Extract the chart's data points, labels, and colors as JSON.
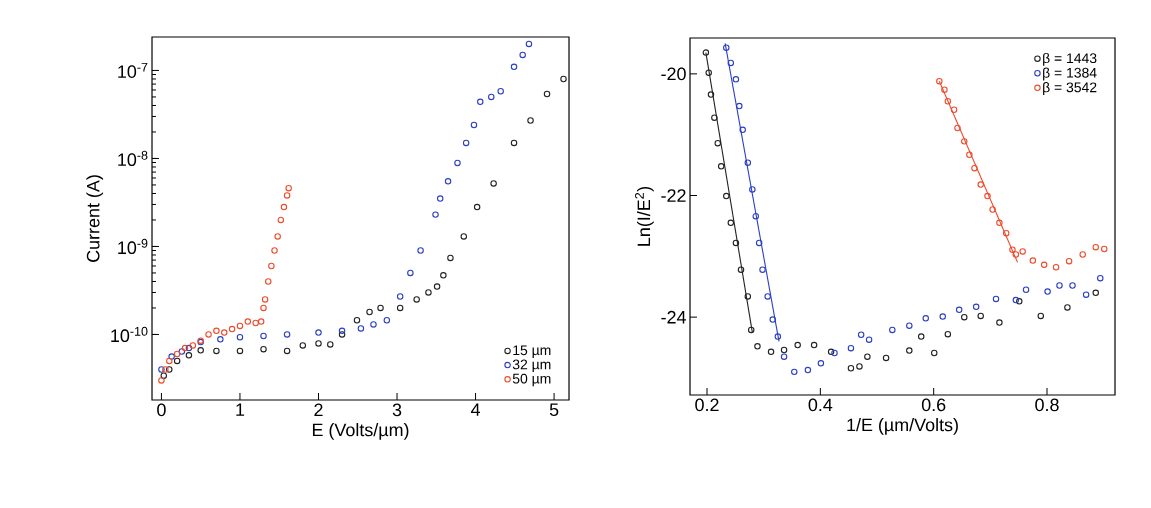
{
  "chart_data": [
    {
      "type": "scatter",
      "xlabel": "E (Volts/µm)",
      "ylabel": "Current (A)",
      "log": "y",
      "legend": "bottom right",
      "marker": "circle",
      "xlim": [
        -0.12,
        5.19
      ],
      "ylim": [
        1.8e-11,
        2.4e-07
      ],
      "xticks": [
        0,
        1,
        2,
        3,
        4,
        5
      ],
      "yticks": [
        {
          "value": 1e-10,
          "label": "10$^{-10}$"
        },
        {
          "value": 1e-09,
          "label": "10$^{-9}$"
        },
        {
          "value": 1e-08,
          "label": "10$^{-8}$"
        },
        {
          "value": 1e-07,
          "label": "10$^{-7}$"
        }
      ],
      "series": [
        {
          "name": "15 µm",
          "color": "#222222",
          "x": [
            0.03,
            0.1,
            0.2,
            0.35,
            0.5,
            0.7,
            1.0,
            1.3,
            1.6,
            1.8,
            2.0,
            2.15,
            2.3,
            2.49,
            2.65,
            2.79,
            3.04,
            3.25,
            3.4,
            3.51,
            3.59,
            3.68,
            3.85,
            4.02,
            4.23,
            4.49,
            4.7,
            4.91,
            5.12
          ],
          "values": [
            3.4e-11,
            4e-11,
            5e-11,
            5.8e-11,
            6.6e-11,
            6.5e-11,
            6.5e-11,
            6.8e-11,
            6.5e-11,
            7.5e-11,
            7.9e-11,
            7.7e-11,
            1e-10,
            1.45e-10,
            1.8e-10,
            2e-10,
            2e-10,
            2.5e-10,
            3e-10,
            3.5e-10,
            4.7e-10,
            7.4e-10,
            1.3e-09,
            2.8e-09,
            5.2e-09,
            1.5e-08,
            2.7e-08,
            5.4e-08,
            8e-08
          ]
        },
        {
          "name": "32 µm",
          "color": "#2a3fc4",
          "x": [
            0,
            0.13,
            0.26,
            0.35,
            0.5,
            0.75,
            1.0,
            1.3,
            1.6,
            2.0,
            2.3,
            2.54,
            2.7,
            2.87,
            3.04,
            3.17,
            3.3,
            3.49,
            3.55,
            3.65,
            3.77,
            3.88,
            3.98,
            4.06,
            4.2,
            4.32,
            4.49,
            4.6,
            4.68
          ],
          "values": [
            4e-11,
            5.6e-11,
            6.4e-11,
            7e-11,
            8.2e-11,
            8.8e-11,
            9.3e-11,
            9.6e-11,
            1e-10,
            1.05e-10,
            1.1e-10,
            1.17e-10,
            1.3e-10,
            1.45e-10,
            2.7e-10,
            5e-10,
            9e-10,
            2.3e-09,
            3.5e-09,
            5.5e-09,
            8.9e-09,
            1.5e-08,
            2.4e-08,
            4.4e-08,
            5e-08,
            5.8e-08,
            1.1e-07,
            1.5e-07,
            2e-07
          ]
        },
        {
          "name": "50 µm",
          "color": "#ee4b2b",
          "x": [
            0,
            0.05,
            0.1,
            0.2,
            0.3,
            0.4,
            0.5,
            0.6,
            0.7,
            0.8,
            0.9,
            1.0,
            1.1,
            1.2,
            1.27,
            1.3,
            1.32,
            1.36,
            1.4,
            1.44,
            1.48,
            1.52,
            1.56,
            1.6,
            1.62
          ],
          "values": [
            3e-11,
            4e-11,
            5e-11,
            6e-11,
            7e-11,
            7.5e-11,
            8.5e-11,
            1e-10,
            1.1e-10,
            1.05e-10,
            1.15e-10,
            1.25e-10,
            1.4e-10,
            1.35e-10,
            1.4e-10,
            2e-10,
            2.5e-10,
            4e-10,
            6e-10,
            9e-10,
            1.3e-09,
            2e-09,
            2.8e-09,
            3.8e-09,
            4.6e-09
          ]
        }
      ]
    },
    {
      "type": "scatter",
      "xlabel": "1/E (µm/Volts)",
      "ylabel": "Ln(I/E$^{2}$)",
      "legend": "top right",
      "marker": "circle",
      "xlim": [
        0.17,
        0.92
      ],
      "ylim": [
        -25.28,
        -19.41
      ],
      "xticks": [
        0.2,
        0.4,
        0.6,
        0.8
      ],
      "yticks": [
        -24,
        -22,
        -20
      ],
      "series": [
        {
          "name": "β = 1443",
          "color": "#222222",
          "x": [
            0.198,
            0.203,
            0.207,
            0.213,
            0.219,
            0.225,
            0.234,
            0.242,
            0.251,
            0.26,
            0.272,
            0.278,
            0.289,
            0.313,
            0.336,
            0.36,
            0.389,
            0.419,
            0.454,
            0.469,
            0.483,
            0.516,
            0.557,
            0.578,
            0.601,
            0.625,
            0.654,
            0.683,
            0.716,
            0.751,
            0.789,
            0.836,
            0.886
          ],
          "values": [
            -19.65,
            -19.98,
            -20.34,
            -20.72,
            -21.14,
            -21.52,
            -22.01,
            -22.45,
            -22.78,
            -23.22,
            -23.66,
            -24.21,
            -24.48,
            -24.57,
            -24.54,
            -24.46,
            -24.46,
            -24.57,
            -24.84,
            -24.81,
            -24.65,
            -24.67,
            -24.55,
            -24.32,
            -24.59,
            -24.28,
            -24.0,
            -23.98,
            -24.09,
            -23.74,
            -23.98,
            -23.84,
            -23.6
          ]
        },
        {
          "name": "β = 1384",
          "color": "#2a3fc4",
          "x": [
            0.234,
            0.242,
            0.251,
            0.257,
            0.263,
            0.272,
            0.28,
            0.286,
            0.292,
            0.298,
            0.307,
            0.316,
            0.325,
            0.336,
            0.354,
            0.378,
            0.401,
            0.425,
            0.454,
            0.472,
            0.486,
            0.527,
            0.557,
            0.586,
            0.616,
            0.645,
            0.675,
            0.71,
            0.745,
            0.763,
            0.801,
            0.822,
            0.845,
            0.869,
            0.894
          ],
          "values": [
            -19.57,
            -19.82,
            -20.09,
            -20.53,
            -20.92,
            -21.46,
            -21.9,
            -22.34,
            -22.78,
            -23.22,
            -23.66,
            -24.04,
            -24.32,
            -24.65,
            -24.9,
            -24.87,
            -24.76,
            -24.59,
            -24.51,
            -24.29,
            -24.37,
            -24.21,
            -24.14,
            -24.02,
            -23.99,
            -23.88,
            -23.83,
            -23.7,
            -23.72,
            -23.55,
            -23.58,
            -23.48,
            -23.48,
            -23.63,
            -23.36
          ]
        },
        {
          "name": "β = 3542",
          "color": "#ee4b2b",
          "x": [
            0.61,
            0.619,
            0.625,
            0.636,
            0.642,
            0.654,
            0.663,
            0.672,
            0.683,
            0.695,
            0.704,
            0.716,
            0.728,
            0.739,
            0.745,
            0.757,
            0.775,
            0.795,
            0.816,
            0.839,
            0.863,
            0.886,
            0.901
          ],
          "values": [
            -20.12,
            -20.26,
            -20.45,
            -20.59,
            -20.89,
            -21.11,
            -21.33,
            -21.55,
            -21.82,
            -22.01,
            -22.23,
            -22.45,
            -22.62,
            -22.89,
            -22.97,
            -22.92,
            -23.07,
            -23.14,
            -23.18,
            -23.08,
            -22.97,
            -22.85,
            -22.88
          ]
        },
        {
          "type": "line",
          "marker": "none",
          "color": "#222222",
          "x": [
            0.198,
            0.28
          ],
          "values": [
            -19.65,
            -24.25
          ]
        },
        {
          "type": "line",
          "marker": "none",
          "color": "#2a3fc4",
          "x": [
            0.232,
            0.327
          ],
          "values": [
            -19.5,
            -24.4
          ]
        },
        {
          "type": "line",
          "marker": "none",
          "color": "#ee4b2b",
          "x": [
            0.61,
            0.748
          ],
          "values": [
            -20.12,
            -23.1
          ]
        }
      ]
    }
  ]
}
